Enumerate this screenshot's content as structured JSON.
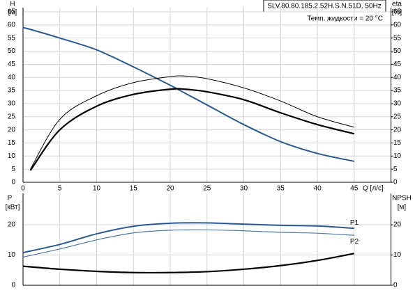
{
  "chart_data": [
    {
      "type": "line",
      "title": "SLV.80.80.185.2.52H.S.N.51D, 50Hz",
      "subtitle": "Темп. жидкости = 20 °C",
      "x_label": "Q [л/с]",
      "y_label": "H",
      "y_unit": "[м]",
      "y2_label": "eta",
      "y2_unit": "[%]",
      "x": [
        0,
        1,
        5,
        10,
        15,
        20,
        22,
        25,
        30,
        35,
        40,
        45
      ],
      "series": [
        {
          "color": "#2b5a8f",
          "width": 2,
          "values": [
            59,
            58.3,
            55,
            50.5,
            44,
            37,
            34,
            29.5,
            22,
            15.5,
            11,
            8
          ]
        },
        {
          "color": "#000000",
          "width": 1,
          "axis": "y2",
          "values": [
            null,
            5,
            24,
            33,
            38,
            40.3,
            40.5,
            39.5,
            36,
            31,
            25,
            21
          ]
        },
        {
          "color": "#000000",
          "width": 2.2,
          "axis": "y2",
          "values": [
            null,
            4.5,
            20,
            29,
            33.5,
            35.5,
            35.5,
            34.5,
            31.5,
            26.5,
            22,
            18.5
          ]
        }
      ],
      "xlim": [
        0,
        50
      ],
      "xticks": [
        0,
        5,
        10,
        15,
        20,
        25,
        30,
        35,
        40,
        45
      ],
      "ylim": [
        0,
        65
      ],
      "yticks": [
        0,
        5,
        10,
        15,
        20,
        25,
        30,
        35,
        40,
        45,
        50,
        55,
        60,
        65
      ],
      "y2lim": [
        0,
        65
      ],
      "y2ticks": [
        0,
        5,
        10,
        15,
        20,
        25,
        30,
        35,
        40,
        45,
        50,
        55,
        60,
        65
      ],
      "grid": true
    },
    {
      "type": "line",
      "y_label": "P",
      "y_unit": "[кВт]",
      "y2_label": "NPSH",
      "y2_unit": "[м]",
      "x": [
        0,
        5,
        10,
        15,
        20,
        25,
        30,
        35,
        40,
        45
      ],
      "series": [
        {
          "name": "P1",
          "color": "#2b5a8f",
          "width": 2,
          "values": [
            10.8,
            13.5,
            17,
            19.5,
            20.5,
            20.6,
            20.2,
            19.8,
            19.6,
            18.8
          ]
        },
        {
          "name": "P2",
          "color": "#4a78a8",
          "width": 1.2,
          "values": [
            9.3,
            12,
            15,
            17.3,
            18.2,
            18.3,
            18,
            17.5,
            17.2,
            16.5
          ]
        },
        {
          "color": "#000000",
          "width": 2.2,
          "axis": "y2",
          "values": [
            6.3,
            5.3,
            4.6,
            4.2,
            4.2,
            4.5,
            5.3,
            6.5,
            8.2,
            10.5
          ]
        }
      ],
      "xlim": [
        0,
        50
      ],
      "ylim": [
        0,
        29
      ],
      "yticks": [
        0,
        10,
        20
      ],
      "y2lim": [
        0,
        29
      ],
      "y2ticks": [
        0,
        10,
        20
      ],
      "grid": true
    }
  ]
}
